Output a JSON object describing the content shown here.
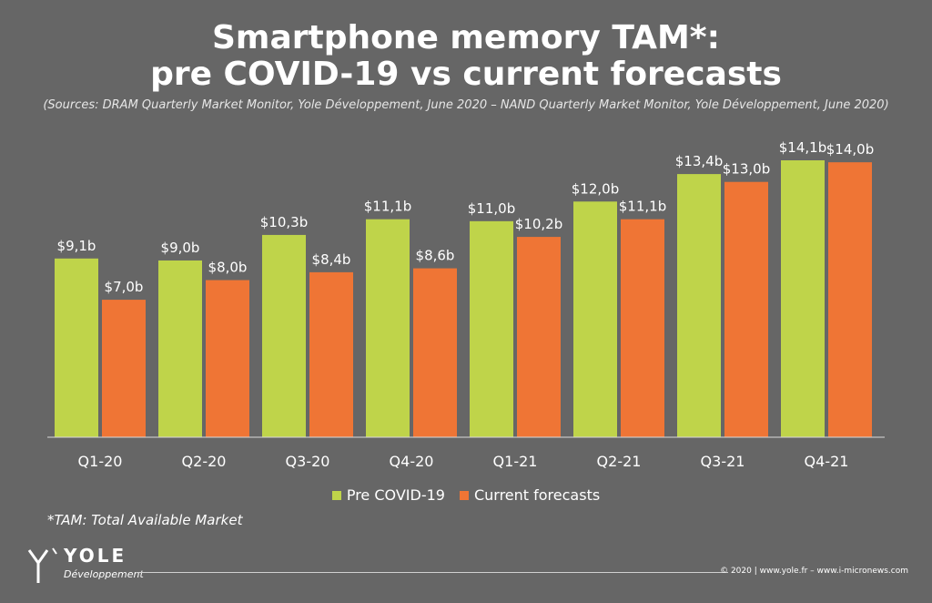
{
  "title_line1": "Smartphone memory TAM*:",
  "title_line2": "pre COVID-19 vs current forecasts",
  "sources": "(Sources: DRAM Quarterly Market Monitor, Yole Développement, June 2020 – NAND Quarterly Market Monitor, Yole Développement, June 2020)",
  "footnote": "*TAM: Total Available Market",
  "logo": {
    "word": "YOLE",
    "sub": "Développement"
  },
  "copyright": "© 2020 | www.yole.fr – www.i-micronews.com",
  "colors": {
    "background": "#666666",
    "pre": "#bfd44a",
    "current": "#ef7535"
  },
  "chart_data": {
    "type": "bar",
    "categories": [
      "Q1-20",
      "Q2-20",
      "Q3-20",
      "Q4-20",
      "Q1-21",
      "Q2-21",
      "Q3-21",
      "Q4-21"
    ],
    "series": [
      {
        "name": "Pre COVID-19",
        "values": [
          9.1,
          9.0,
          10.3,
          11.1,
          11.0,
          12.0,
          13.4,
          14.1
        ],
        "labels": [
          "$9,1b",
          "$9,0b",
          "$10,3b",
          "$11,1b",
          "$11,0b",
          "$12,0b",
          "$13,4b",
          "$14,1b"
        ]
      },
      {
        "name": "Current forecasts",
        "values": [
          7.0,
          8.0,
          8.4,
          8.6,
          10.2,
          11.1,
          13.0,
          14.0
        ],
        "labels": [
          "$7,0b",
          "$8,0b",
          "$8,4b",
          "$8,6b",
          "$10,2b",
          "$11,1b",
          "$13,0b",
          "$14,0b"
        ]
      }
    ],
    "ylim": [
      0,
      14.1
    ],
    "grid": false,
    "legend_position": "bottom"
  }
}
